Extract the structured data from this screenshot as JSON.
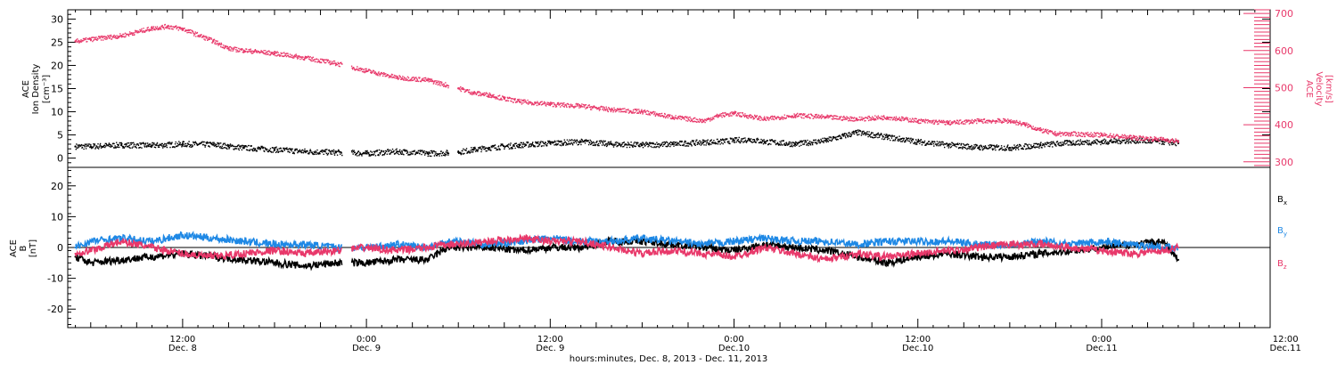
{
  "chart_data": [
    {
      "type": "scatter",
      "panel": "top",
      "left_axis": {
        "label_lines": [
          "ACE",
          "Ion Density",
          "[cm⁻³]"
        ],
        "ylim": [
          -2,
          32
        ],
        "ticks": [
          "0",
          "5",
          "10",
          "15",
          "20",
          "25",
          "30"
        ],
        "tick_values": [
          0,
          5,
          10,
          15,
          20,
          25,
          30
        ]
      },
      "right_axis": {
        "label_lines": [
          "ACE",
          "Velocity",
          "[km/s]"
        ],
        "ylim": [
          285,
          710
        ],
        "ticks": [
          "300",
          "400",
          "500",
          "600",
          "700"
        ],
        "tick_values": [
          300,
          400,
          500,
          600,
          700
        ],
        "color": "#e8386a"
      },
      "series": [
        {
          "axis": "left",
          "color": "#000000",
          "x": [
            5,
            6,
            8,
            10,
            12,
            14,
            15,
            16,
            18,
            20,
            22,
            24,
            26,
            28,
            29.3,
            30,
            31,
            32,
            34,
            36,
            38,
            40,
            42,
            44,
            46,
            47,
            48,
            49,
            50,
            52,
            54,
            56,
            58,
            60,
            62,
            64,
            66,
            68,
            70,
            72,
            74,
            76,
            77
          ],
          "y": [
            2.5,
            2.5,
            2.8,
            2.7,
            3.0,
            2.9,
            2.5,
            2.2,
            1.8,
            1.4,
            1.2,
            1.0,
            1.4,
            1.0,
            1.1,
            1.3,
            1.8,
            2.2,
            2.8,
            3.2,
            3.5,
            3.0,
            2.8,
            3.0,
            3.4,
            3.5,
            3.8,
            4.0,
            3.5,
            3.0,
            3.8,
            5.5,
            4.5,
            3.5,
            2.8,
            2.3,
            2.2,
            2.8,
            3.3,
            3.5,
            3.8,
            3.5,
            3.2
          ]
        },
        {
          "axis": "right",
          "color": "#e8386a",
          "x": [
            5,
            6,
            8,
            10,
            11,
            12,
            14,
            15,
            16,
            18,
            20,
            22,
            24,
            26,
            28,
            30,
            31,
            32,
            33,
            34,
            36,
            38,
            40,
            42,
            44,
            46,
            47,
            48,
            50,
            52,
            54,
            56,
            58,
            60,
            62,
            64,
            66,
            67,
            68,
            69,
            70,
            72,
            74,
            76,
            77
          ],
          "y": [
            625,
            630,
            640,
            660,
            665,
            658,
            625,
            605,
            600,
            592,
            580,
            565,
            545,
            527,
            520,
            498,
            485,
            480,
            470,
            462,
            455,
            450,
            440,
            435,
            420,
            410,
            425,
            430,
            415,
            425,
            420,
            415,
            420,
            410,
            405,
            410,
            410,
            400,
            385,
            375,
            375,
            372,
            365,
            360,
            355
          ]
        }
      ]
    },
    {
      "type": "line",
      "panel": "bottom",
      "left_axis": {
        "label_lines": [
          "ACE",
          "B",
          "[nT]"
        ],
        "ylim": [
          -26,
          26
        ],
        "ticks": [
          "-20",
          "-10",
          "0",
          "10",
          "20"
        ],
        "tick_values": [
          -20,
          -10,
          0,
          10,
          20
        ]
      },
      "zero_line": 0,
      "legend": [
        "B",
        "B",
        "B"
      ],
      "legend_subscripts": [
        "x",
        "y",
        "z"
      ],
      "series": [
        {
          "color": "#000000",
          "x": [
            5,
            6,
            8,
            10,
            12,
            14,
            16,
            18,
            20,
            22,
            24,
            26,
            28,
            29.3,
            30,
            32,
            34,
            36,
            38,
            40,
            42,
            44,
            46,
            48,
            50,
            52,
            54,
            56,
            58,
            60,
            62,
            64,
            66,
            68,
            70,
            72,
            74,
            76,
            77
          ],
          "y": [
            -3,
            -5,
            -4,
            -3,
            -2,
            -3,
            -4,
            -5,
            -6,
            -5,
            -5,
            -4,
            -4,
            0,
            0,
            0,
            -1,
            0,
            0,
            2,
            2,
            1,
            0,
            -1,
            1,
            0,
            -1,
            -3,
            -5,
            -3,
            -2,
            -3,
            -3,
            -2,
            -1,
            0,
            1,
            2,
            -4
          ]
        },
        {
          "color": "#1e88e5",
          "x": [
            5,
            6,
            8,
            10,
            12,
            14,
            16,
            18,
            20,
            22,
            24,
            26,
            28,
            29.3,
            30,
            32,
            34,
            36,
            38,
            40,
            42,
            44,
            46,
            48,
            50,
            52,
            54,
            56,
            58,
            60,
            62,
            64,
            66,
            68,
            70,
            72,
            74,
            76,
            77
          ],
          "y": [
            0,
            2,
            3,
            2,
            4,
            3,
            2,
            1,
            1,
            0,
            0,
            1,
            0,
            2,
            2,
            1,
            2,
            3,
            2,
            2,
            3,
            2,
            1,
            2,
            3,
            2,
            2,
            1,
            2,
            2,
            2,
            1,
            1,
            2,
            1,
            2,
            1,
            0,
            0
          ]
        },
        {
          "color": "#e8386a",
          "x": [
            5,
            6,
            8,
            10,
            12,
            14,
            16,
            18,
            20,
            22,
            24,
            26,
            28,
            29.3,
            30,
            32,
            34,
            36,
            38,
            40,
            42,
            44,
            46,
            48,
            50,
            52,
            54,
            56,
            58,
            60,
            62,
            64,
            66,
            68,
            70,
            72,
            74,
            76,
            77
          ],
          "y": [
            -2,
            -1,
            2,
            0,
            -2,
            -3,
            -2,
            -1,
            -2,
            -1,
            0,
            -1,
            0,
            1,
            1,
            2,
            3,
            2,
            2,
            0,
            -2,
            -1,
            -2,
            -3,
            0,
            -2,
            -4,
            -2,
            -3,
            -2,
            -1,
            0,
            1,
            1,
            0,
            -1,
            -2,
            -1,
            0
          ]
        }
      ]
    }
  ],
  "x_axis": {
    "xlim": [
      4.5,
      83
    ],
    "ticks": [
      {
        "x": 12,
        "time": "12:00",
        "day": "Dec. 8"
      },
      {
        "x": 24,
        "time": "0:00",
        "day": "Dec. 9"
      },
      {
        "x": 36,
        "time": "12:00",
        "day": "Dec. 9"
      },
      {
        "x": 48,
        "time": "0:00",
        "day": "Dec.10"
      },
      {
        "x": 60,
        "time": "12:00",
        "day": "Dec.10"
      },
      {
        "x": 72,
        "time": "0:00",
        "day": "Dec.11"
      },
      {
        "x": 84,
        "time": "12:00",
        "day": "Dec.11"
      }
    ],
    "title": "hours:minutes, Dec. 8, 2013 - Dec. 11, 2013"
  }
}
